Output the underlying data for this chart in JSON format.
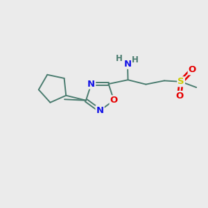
{
  "bg_color": "#ebebeb",
  "bond_color": "#4a7c6f",
  "N_color": "#1414e6",
  "O_color": "#e60000",
  "S_color": "#cccc00",
  "H_color": "#4a7c6f",
  "bond_width": 1.4,
  "font_size_atom": 9.5,
  "fig_size": [
    3.0,
    3.0
  ],
  "xlim": [
    0,
    10
  ],
  "ylim": [
    0,
    10
  ]
}
